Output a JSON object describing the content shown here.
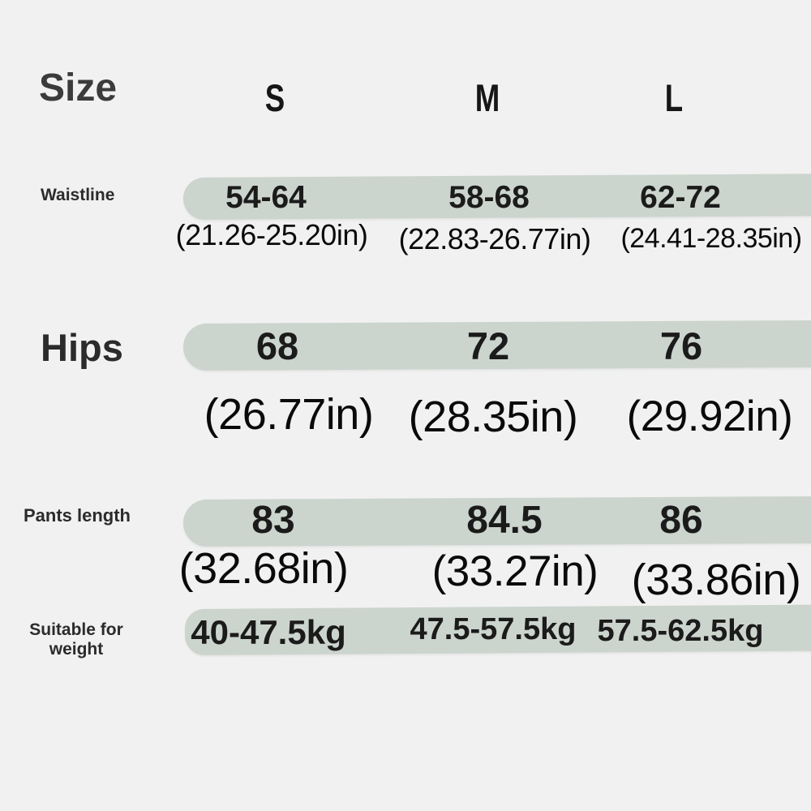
{
  "background_color": "#f0f1f0",
  "accent_band_color": "#ccd4ce",
  "table": {
    "title": "Size",
    "columns": [
      "S",
      "M",
      "L"
    ],
    "rows": [
      {
        "label": "Waistline",
        "values": [
          "54-64",
          "58-68",
          "62-72"
        ],
        "inches": [
          "(21.26-25.20in)",
          "(22.83-26.77in)",
          "(24.41-28.35in)"
        ]
      },
      {
        "label": "Hips",
        "values": [
          "68",
          "72",
          "76"
        ],
        "inches": [
          "(26.77in)",
          "(28.35in)",
          "(29.92in)"
        ]
      },
      {
        "label": "Pants length",
        "values": [
          "83",
          "84.5",
          "86"
        ],
        "inches": [
          "(32.68in)",
          "(33.27in)",
          "(33.86in)"
        ]
      },
      {
        "label": "Suitable for weight",
        "values": [
          "40-47.5kg",
          "47.5-57.5kg",
          "57.5-62.5kg"
        ],
        "inches": []
      }
    ]
  },
  "chart_data": {
    "type": "table",
    "title": "Size",
    "columns": [
      "S",
      "M",
      "L"
    ],
    "rows": [
      {
        "label": "Waistline",
        "values": [
          "54-64",
          "58-68",
          "62-72"
        ],
        "inches": [
          "21.26-25.20in",
          "22.83-26.77in",
          "24.41-28.35in"
        ]
      },
      {
        "label": "Hips",
        "values": [
          68,
          72,
          76
        ],
        "inches": [
          "26.77in",
          "28.35in",
          "29.92in"
        ]
      },
      {
        "label": "Pants length",
        "values": [
          83,
          84.5,
          86
        ],
        "inches": [
          "32.68in",
          "33.27in",
          "33.86in"
        ]
      },
      {
        "label": "Suitable for weight",
        "values": [
          "40-47.5kg",
          "47.5-57.5kg",
          "57.5-62.5kg"
        ],
        "inches": []
      }
    ]
  }
}
